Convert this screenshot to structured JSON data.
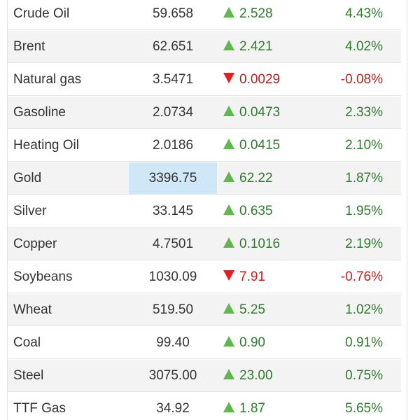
{
  "colors": {
    "up_text": "#2c7d2c",
    "down_text": "#c0201e",
    "up_arrow": "#5fb84a",
    "down_arrow": "#e02020",
    "highlight": "#cfe7f7",
    "row_alt": "#f3f3f3"
  },
  "rows": [
    {
      "name": "Crude Oil",
      "price": "59.658",
      "change": "2.528",
      "pct": "4.43%",
      "direction": "up",
      "highlight": false
    },
    {
      "name": "Brent",
      "price": "62.651",
      "change": "2.421",
      "pct": "4.02%",
      "direction": "up",
      "highlight": false
    },
    {
      "name": "Natural gas",
      "price": "3.5471",
      "change": "0.0029",
      "pct": "-0.08%",
      "direction": "down",
      "highlight": false
    },
    {
      "name": "Gasoline",
      "price": "2.0734",
      "change": "0.0473",
      "pct": "2.33%",
      "direction": "up",
      "highlight": false
    },
    {
      "name": "Heating Oil",
      "price": "2.0186",
      "change": "0.0415",
      "pct": "2.10%",
      "direction": "up",
      "highlight": false
    },
    {
      "name": "Gold",
      "price": "3396.75",
      "change": "62.22",
      "pct": "1.87%",
      "direction": "up",
      "highlight": true
    },
    {
      "name": "Silver",
      "price": "33.145",
      "change": "0.635",
      "pct": "1.95%",
      "direction": "up",
      "highlight": false
    },
    {
      "name": "Copper",
      "price": "4.7501",
      "change": "0.1016",
      "pct": "2.19%",
      "direction": "up",
      "highlight": false
    },
    {
      "name": "Soybeans",
      "price": "1030.09",
      "change": "7.91",
      "pct": "-0.76%",
      "direction": "down",
      "highlight": false
    },
    {
      "name": "Wheat",
      "price": "519.50",
      "change": "5.25",
      "pct": "1.02%",
      "direction": "up",
      "highlight": false
    },
    {
      "name": "Coal",
      "price": "99.40",
      "change": "0.90",
      "pct": "0.91%",
      "direction": "up",
      "highlight": false
    },
    {
      "name": "Steel",
      "price": "3075.00",
      "change": "23.00",
      "pct": "0.75%",
      "direction": "up",
      "highlight": false
    },
    {
      "name": "TTF Gas",
      "price": "34.92",
      "change": "1.87",
      "pct": "5.65%",
      "direction": "up",
      "highlight": false
    }
  ]
}
